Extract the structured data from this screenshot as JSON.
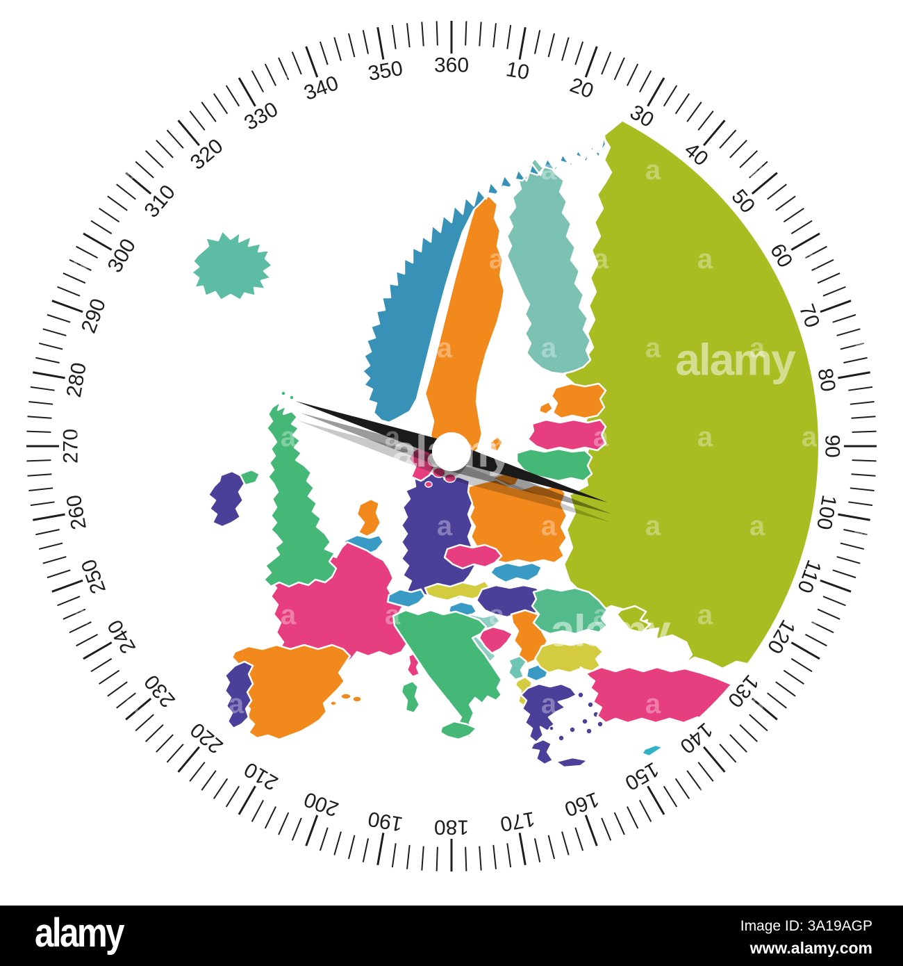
{
  "page": {
    "background": "#ffffff"
  },
  "dial": {
    "minor_step_deg": 2,
    "major_step_deg": 10,
    "tick_color": "#1d1d1b",
    "label_color": "#1d1d1b",
    "labels": [
      "10",
      "20",
      "30",
      "40",
      "50",
      "60",
      "70",
      "80",
      "90",
      "100",
      "110",
      "120",
      "130",
      "140",
      "150",
      "160",
      "170",
      "180",
      "190",
      "200",
      "210",
      "220",
      "230",
      "240",
      "250",
      "260",
      "270",
      "280",
      "290",
      "300",
      "310",
      "320",
      "330",
      "340",
      "350",
      "360"
    ]
  },
  "needle": {
    "bearing_deg": 108,
    "color": "#1a1a1a",
    "shadow_color": "#9b9b9b",
    "shadow2_color": "#c9c9c9",
    "hub_color": "#ffffff",
    "hub_shadow_color": "#b0b0b0"
  },
  "map": {
    "border_color": "#ffffff",
    "countries": [
      {
        "id": "russia",
        "name": "Russia and Eastern Europe",
        "color": "#a9bc21"
      },
      {
        "id": "blacksea",
        "name": "Black Sea",
        "color": "#ffffff"
      },
      {
        "id": "crimea",
        "name": "Crimea",
        "color": "#a9bc21"
      },
      {
        "id": "finland",
        "name": "Finland",
        "color": "#7cc2b3"
      },
      {
        "id": "sweden",
        "name": "Sweden",
        "color": "#f2891d"
      },
      {
        "id": "gotland",
        "name": "Gotland",
        "color": "#f2891d"
      },
      {
        "id": "norway",
        "name": "Norway",
        "color": "#3892b8"
      },
      {
        "id": "iceland",
        "name": "Iceland",
        "color": "#5cbda4"
      },
      {
        "id": "estonia",
        "name": "Estonia",
        "color": "#f2891d"
      },
      {
        "id": "saaremaa",
        "name": "Saaremaa",
        "color": "#f2891d"
      },
      {
        "id": "latvia",
        "name": "Latvia",
        "color": "#e73e7f"
      },
      {
        "id": "lithuania",
        "name": "Lithuania",
        "color": "#45b878"
      },
      {
        "id": "kaliningrad",
        "name": "Kaliningrad",
        "color": "#f2891d"
      },
      {
        "id": "poland",
        "name": "Poland",
        "color": "#f2891d"
      },
      {
        "id": "germany",
        "name": "Germany",
        "color": "#4a3f99"
      },
      {
        "id": "denmark",
        "name": "Denmark",
        "color": "#e73e7f"
      },
      {
        "id": "netherlands",
        "name": "Netherlands",
        "color": "#f2891d"
      },
      {
        "id": "belgium",
        "name": "Belgium",
        "color": "#3a9ac6"
      },
      {
        "id": "france",
        "name": "France",
        "color": "#e73e7f"
      },
      {
        "id": "corsica",
        "name": "Corsica",
        "color": "#e73e7f"
      },
      {
        "id": "switzerland",
        "name": "Switzerland",
        "color": "#3a9ac6"
      },
      {
        "id": "austria",
        "name": "Austria",
        "color": "#d3cc40"
      },
      {
        "id": "czechia",
        "name": "Czechia",
        "color": "#e73e7f"
      },
      {
        "id": "slovakia",
        "name": "Slovakia",
        "color": "#3a9ac6"
      },
      {
        "id": "hungary",
        "name": "Hungary",
        "color": "#4a3f99"
      },
      {
        "id": "slovenia",
        "name": "Slovenia",
        "color": "#3a9ac6"
      },
      {
        "id": "croatia",
        "name": "Croatia",
        "color": "#8ecdc2"
      },
      {
        "id": "bosnia",
        "name": "Bosnia",
        "color": "#e73e7f"
      },
      {
        "id": "serbia",
        "name": "Serbia",
        "color": "#f2891d"
      },
      {
        "id": "montenegro",
        "name": "Montenegro",
        "color": "#6fc4b4"
      },
      {
        "id": "macedonia",
        "name": "North Macedonia",
        "color": "#3a9ac6"
      },
      {
        "id": "albania",
        "name": "Albania",
        "color": "#d3cc40"
      },
      {
        "id": "romania",
        "name": "Romania",
        "color": "#52ba8b"
      },
      {
        "id": "bulgaria",
        "name": "Bulgaria",
        "color": "#d3cc40"
      },
      {
        "id": "greece",
        "name": "Greece",
        "color": "#4a3f99"
      },
      {
        "id": "turkey",
        "name": "Turkey",
        "color": "#e73e7f"
      },
      {
        "id": "cyprus",
        "name": "Cyprus",
        "color": "#2fb3c5"
      },
      {
        "id": "uk",
        "name": "United Kingdom",
        "color": "#45b878"
      },
      {
        "id": "nireland",
        "name": "Northern Ireland",
        "color": "#45b878"
      },
      {
        "id": "ireland",
        "name": "Ireland",
        "color": "#4a3f99"
      },
      {
        "id": "spain",
        "name": "Spain",
        "color": "#f2891d"
      },
      {
        "id": "portugal",
        "name": "Portugal",
        "color": "#4a3f99"
      },
      {
        "id": "balearics",
        "name": "Balearic Islands",
        "color": "#f2891d"
      },
      {
        "id": "italy",
        "name": "Italy",
        "color": "#45b878"
      },
      {
        "id": "sicily",
        "name": "Sicily",
        "color": "#45b878"
      },
      {
        "id": "sardinia",
        "name": "Sardinia",
        "color": "#45b878"
      },
      {
        "id": "shetland",
        "name": "Shetland",
        "color": "#45b878"
      }
    ]
  },
  "watermark": {
    "brand": "alamy",
    "letter": "a",
    "big_color": "rgba(255,255,255,0.5)",
    "small_color": "rgba(255,255,255,0.33)"
  },
  "footer": {
    "logo": "alamy",
    "image_id": "Image ID: 3A19AGP",
    "website": "www.alamy.com",
    "background": "#000000",
    "text_color": "#ffffff"
  }
}
